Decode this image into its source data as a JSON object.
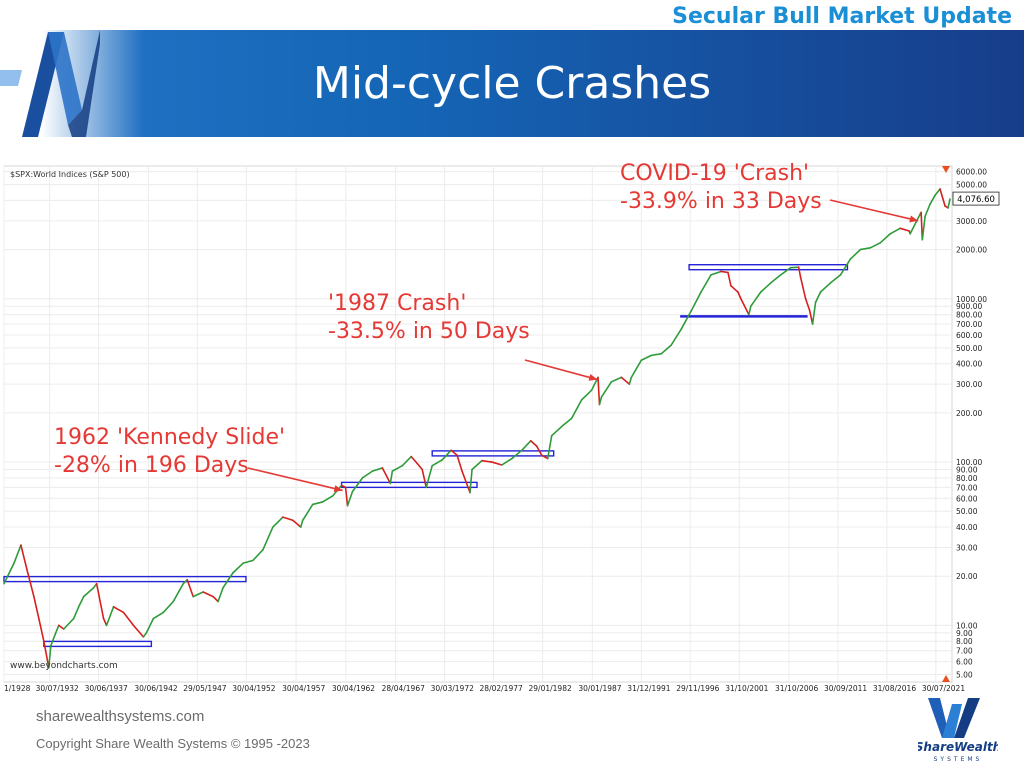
{
  "header": {
    "top_title": "Secular Bull Market Update",
    "slide_title": "Mid-cycle Crashes"
  },
  "footer": {
    "site": "sharewealthsystems.com",
    "copyright": "Copyright  Share Wealth Systems © 1995 -2023",
    "logo_text": "ShareWealth",
    "logo_sub": "SYSTEMS"
  },
  "chart_data": {
    "type": "line",
    "title": "$SPX:World Indices (S&P 500)",
    "watermark": "www.beyondcharts.com",
    "last_value_label": "4,076.60",
    "y_scale": "log",
    "ylim": [
      4.5,
      6500
    ],
    "y_ticks": [
      5,
      6,
      7,
      8,
      9,
      10,
      20,
      30,
      40,
      50,
      60,
      70,
      80,
      90,
      100,
      200,
      300,
      400,
      500,
      600,
      700,
      800,
      900,
      1000,
      2000,
      3000,
      4000,
      5000,
      6000
    ],
    "y_tick_labels": [
      "5.00",
      "6.00",
      "7.00",
      "8.00",
      "9.00",
      "10.00",
      "20.00",
      "30.00",
      "40.00",
      "50.00",
      "60.00",
      "70.00",
      "80.00",
      "90.00",
      "100.00",
      "200.00",
      "300.00",
      "400.00",
      "500.00",
      "600.00",
      "700.00",
      "800.00",
      "900.00",
      "1000.00",
      "2000.00",
      "3000.00",
      "4000.00",
      "5000.00",
      "6000.00"
    ],
    "xlim": [
      1928.0,
      2023.2
    ],
    "x_tick_labels": [
      "1/1928",
      "30/07/1932",
      "30/06/1937",
      "30/06/1942",
      "29/05/1947",
      "30/04/1952",
      "30/04/1957",
      "30/04/1962",
      "28/04/1967",
      "30/03/1972",
      "28/02/1977",
      "29/01/1982",
      "30/01/1987",
      "31/12/1991",
      "29/11/1996",
      "31/10/2001",
      "31/10/2006",
      "30/09/2011",
      "31/08/2016",
      "30/07/2021"
    ],
    "x_tick_years": [
      1928.0,
      1932.58,
      1937.5,
      1942.5,
      1947.41,
      1952.33,
      1957.33,
      1962.33,
      1967.33,
      1972.25,
      1977.16,
      1982.08,
      1987.08,
      1992.0,
      1996.91,
      2001.83,
      2006.83,
      2011.75,
      2016.66,
      2021.58
    ],
    "series": [
      {
        "x": [
          1928.0,
          1929.0,
          1929.7,
          1930.3,
          1931.0,
          1931.5,
          1932.0,
          1932.5,
          1932.7,
          1933.2,
          1933.5,
          1934.0,
          1935.0,
          1935.5,
          1936.0,
          1937.0,
          1937.3,
          1938.0,
          1938.3,
          1939.0,
          1940.0,
          1941.0,
          1942.0,
          1942.3,
          1943.0,
          1944.0,
          1945.0,
          1946.0,
          1946.4,
          1947.0,
          1948.0,
          1949.0,
          1949.5,
          1950.0,
          1951.0,
          1952.0,
          1953.0,
          1954.0,
          1955.0,
          1956.0,
          1957.0,
          1957.8,
          1958.0,
          1959.0,
          1960.0,
          1961.0,
          1961.9,
          1962.3,
          1962.5,
          1963.0,
          1964.0,
          1965.0,
          1966.0,
          1966.8,
          1967.0,
          1968.0,
          1968.9,
          1969.5,
          1970.0,
          1970.4,
          1971.0,
          1972.0,
          1972.9,
          1973.5,
          1974.0,
          1974.8,
          1975.0,
          1976.0,
          1977.0,
          1978.0,
          1979.0,
          1980.0,
          1980.9,
          1981.5,
          1982.0,
          1982.6,
          1983.0,
          1984.0,
          1985.0,
          1986.0,
          1987.0,
          1987.65,
          1987.8,
          1988.0,
          1989.0,
          1990.0,
          1990.8,
          1991.0,
          1992.0,
          1993.0,
          1994.0,
          1995.0,
          1996.0,
          1997.0,
          1998.0,
          1999.0,
          2000.0,
          2000.7,
          2001.0,
          2001.7,
          2002.0,
          2002.8,
          2003.0,
          2004.0,
          2005.0,
          2006.0,
          2007.0,
          2007.8,
          2008.0,
          2008.5,
          2008.9,
          2009.2,
          2009.5,
          2010.0,
          2011.0,
          2012.0,
          2013.0,
          2014.0,
          2015.0,
          2016.0,
          2017.0,
          2018.0,
          2018.9,
          2019.0,
          2020.0,
          2020.1,
          2020.22,
          2020.5,
          2021.0,
          2021.5,
          2022.0,
          2022.5,
          2022.8,
          2023.0
        ],
        "y": [
          18,
          24,
          31,
          22,
          15,
          11,
          8,
          5.5,
          7.5,
          9,
          10,
          9.5,
          11,
          13,
          15,
          17,
          18,
          11,
          10,
          13,
          12,
          10,
          8.5,
          9,
          11,
          12,
          14,
          18,
          19,
          15,
          16,
          15,
          14,
          17,
          21,
          24,
          25,
          29,
          40,
          46,
          44,
          40,
          44,
          55,
          57,
          62,
          72,
          70,
          54,
          66,
          80,
          88,
          92,
          74,
          88,
          95,
          108,
          98,
          90,
          70,
          95,
          103,
          118,
          110,
          88,
          65,
          90,
          102,
          100,
          96,
          105,
          118,
          135,
          125,
          110,
          105,
          145,
          165,
          185,
          240,
          275,
          330,
          225,
          250,
          310,
          330,
          300,
          330,
          420,
          450,
          460,
          520,
          650,
          840,
          1100,
          1400,
          1469,
          1450,
          1200,
          1100,
          1000,
          800,
          900,
          1100,
          1250,
          1400,
          1550,
          1560,
          1350,
          1000,
          850,
          700,
          950,
          1100,
          1250,
          1400,
          1750,
          2000,
          2050,
          2200,
          2500,
          2700,
          2600,
          2500,
          3300,
          3380,
          2300,
          3200,
          3800,
          4300,
          4700,
          3700,
          3600,
          4076.6
        ]
      }
    ],
    "range_boxes": [
      {
        "x0": 1928.0,
        "x1": 1952.3,
        "y": 19.2
      },
      {
        "x0": 1932.0,
        "x1": 1942.8,
        "y": 7.7
      },
      {
        "x0": 1961.9,
        "x1": 1975.5,
        "y": 72.5
      },
      {
        "x0": 1971.0,
        "x1": 1983.2,
        "y": 113
      },
      {
        "x0": 1996.8,
        "x1": 2012.7,
        "y": 1560
      }
    ],
    "range_lines": [
      {
        "x0": 1995.9,
        "x1": 2008.7,
        "y": 780
      }
    ],
    "annotations": [
      {
        "line1": "1962 'Kennedy Slide'",
        "line2": "-28% in 196 Days",
        "arrow_to": [
          1962.0,
          67
        ]
      },
      {
        "line1": "'1987 Crash'",
        "line2": "-33.5% in 50 Days",
        "arrow_to": [
          1987.6,
          320
        ]
      },
      {
        "line1": "COVID-19 'Crash'",
        "line2": "-33.9% in 33 Days",
        "arrow_to": [
          2019.8,
          3000
        ]
      }
    ]
  }
}
